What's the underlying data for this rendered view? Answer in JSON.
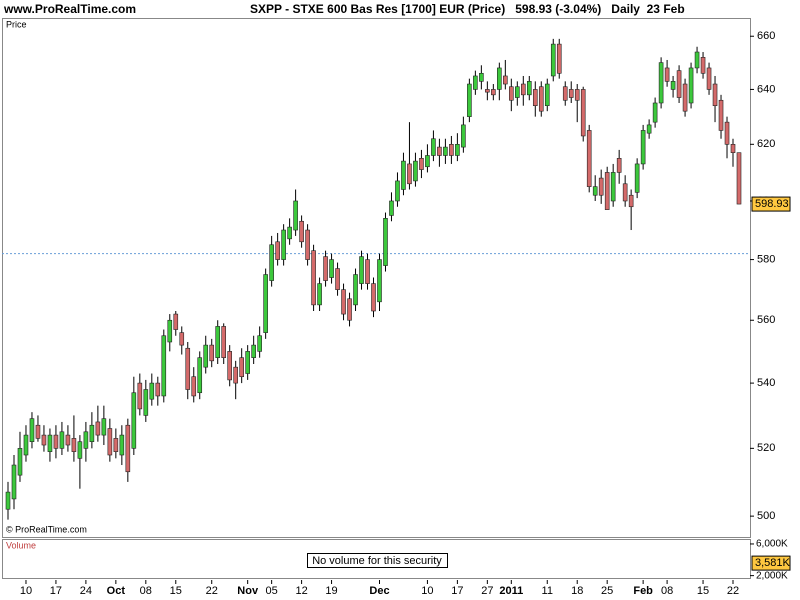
{
  "chart_data": {
    "type": "candlestick",
    "site": "www.ProRealTime.com",
    "title": "SXPP - STXE 600 Bas Res [1700] EUR (Price)   598.93 (-3.04%)   Daily  23 Feb",
    "price_label": "Price",
    "copyright": "© ProRealTime.com",
    "log_scale": true,
    "up_color": "#3cc83c",
    "down_color": "#d46a6a",
    "ylim": [
      494,
      667
    ],
    "yticks": [
      500,
      520,
      540,
      560,
      580,
      600,
      620,
      640,
      660
    ],
    "reference_line": 582,
    "last_price": 598.93,
    "categories": [
      null,
      null,
      null,
      "10",
      null,
      null,
      null,
      null,
      "17",
      null,
      null,
      null,
      null,
      "24",
      null,
      null,
      null,
      null,
      "Oct",
      null,
      null,
      null,
      null,
      "08",
      null,
      null,
      null,
      null,
      "15",
      null,
      null,
      null,
      null,
      null,
      "22",
      null,
      null,
      null,
      null,
      null,
      "Nov",
      null,
      null,
      null,
      "05",
      null,
      null,
      null,
      null,
      "12",
      null,
      null,
      null,
      null,
      "19",
      null,
      null,
      null,
      null,
      null,
      null,
      null,
      "Dec",
      null,
      null,
      null,
      null,
      null,
      null,
      null,
      "10",
      null,
      null,
      null,
      null,
      "17",
      null,
      null,
      null,
      null,
      "27",
      null,
      null,
      null,
      "2011",
      null,
      null,
      null,
      null,
      null,
      "11",
      null,
      null,
      null,
      null,
      "18",
      null,
      null,
      null,
      null,
      "25",
      null,
      null,
      null,
      null,
      null,
      "Feb",
      null,
      null,
      null,
      "08",
      null,
      null,
      null,
      null,
      null,
      "15",
      null,
      null,
      null,
      null,
      "22",
      null
    ],
    "ohlc": [
      [
        502,
        510,
        499,
        507
      ],
      [
        505,
        518,
        502,
        515
      ],
      [
        512,
        525,
        510,
        520
      ],
      [
        518,
        527,
        516,
        524
      ],
      [
        522,
        531,
        520,
        529
      ],
      [
        527,
        530,
        522,
        523
      ],
      [
        524,
        527,
        519,
        521
      ],
      [
        519,
        526,
        516,
        524
      ],
      [
        524,
        527,
        517,
        520
      ],
      [
        520,
        528,
        518,
        525
      ],
      [
        524,
        527,
        519,
        521
      ],
      [
        523,
        530,
        516,
        519
      ],
      [
        517,
        524,
        508,
        522
      ],
      [
        520,
        528,
        516,
        525
      ],
      [
        522,
        531,
        520,
        527
      ],
      [
        528,
        533,
        522,
        524
      ],
      [
        524,
        533,
        521,
        529
      ],
      [
        526,
        529,
        516,
        518
      ],
      [
        523,
        526,
        517,
        519
      ],
      [
        518,
        527,
        515,
        524
      ],
      [
        527,
        529,
        510,
        513
      ],
      [
        520,
        542,
        518,
        537
      ],
      [
        540,
        543,
        530,
        532
      ],
      [
        530,
        541,
        528,
        538
      ],
      [
        535,
        543,
        533,
        540
      ],
      [
        540,
        542,
        533,
        536
      ],
      [
        536,
        557,
        534,
        555
      ],
      [
        553,
        562,
        550,
        560
      ],
      [
        562,
        563,
        555,
        557
      ],
      [
        556,
        558,
        549,
        552
      ],
      [
        551,
        553,
        535,
        538
      ],
      [
        542,
        545,
        534,
        536
      ],
      [
        537,
        550,
        535,
        548
      ],
      [
        545,
        555,
        543,
        552
      ],
      [
        552,
        554,
        545,
        547
      ],
      [
        548,
        560,
        546,
        558
      ],
      [
        558,
        559,
        546,
        548
      ],
      [
        550,
        552,
        539,
        541
      ],
      [
        545,
        547,
        535,
        540
      ],
      [
        548,
        551,
        540,
        542
      ],
      [
        543,
        552,
        541,
        550
      ],
      [
        548,
        555,
        546,
        552
      ],
      [
        550,
        558,
        548,
        555
      ],
      [
        556,
        577,
        554,
        575
      ],
      [
        573,
        588,
        571,
        585
      ],
      [
        586,
        589,
        578,
        580
      ],
      [
        580,
        592,
        578,
        590
      ],
      [
        587,
        594,
        585,
        591
      ],
      [
        590,
        604,
        588,
        600
      ],
      [
        593,
        595,
        584,
        586
      ],
      [
        590,
        592,
        578,
        580
      ],
      [
        583,
        585,
        563,
        565
      ],
      [
        565,
        574,
        563,
        572
      ],
      [
        581,
        583,
        571,
        573
      ],
      [
        574,
        582,
        572,
        580
      ],
      [
        577,
        579,
        568,
        570
      ],
      [
        570,
        572,
        560,
        562
      ],
      [
        567,
        569,
        558,
        560
      ],
      [
        565,
        577,
        563,
        575
      ],
      [
        572,
        583,
        570,
        581
      ],
      [
        580,
        582,
        570,
        572
      ],
      [
        572,
        574,
        561,
        563
      ],
      [
        566,
        582,
        563,
        580
      ],
      [
        578,
        596,
        576,
        594
      ],
      [
        595,
        603,
        593,
        600
      ],
      [
        600,
        610,
        598,
        607
      ],
      [
        604,
        617,
        602,
        614
      ],
      [
        613,
        628,
        604,
        606
      ],
      [
        607,
        617,
        605,
        614
      ],
      [
        615,
        618,
        608,
        611
      ],
      [
        612,
        620,
        610,
        616
      ],
      [
        616,
        625,
        614,
        622
      ],
      [
        619,
        622,
        612,
        616
      ],
      [
        616,
        622,
        613,
        619
      ],
      [
        620,
        623,
        613,
        616
      ],
      [
        616,
        624,
        614,
        620
      ],
      [
        619,
        630,
        617,
        627
      ],
      [
        630,
        644,
        628,
        642
      ],
      [
        640,
        647,
        638,
        645
      ],
      [
        643,
        649,
        640,
        646
      ],
      [
        640,
        643,
        636,
        639
      ],
      [
        640,
        642,
        636,
        638
      ],
      [
        640,
        650,
        636,
        648
      ],
      [
        645,
        651,
        640,
        642
      ],
      [
        641,
        644,
        632,
        636
      ],
      [
        637,
        643,
        634,
        641
      ],
      [
        642,
        645,
        634,
        638
      ],
      [
        638,
        645,
        636,
        643
      ],
      [
        640,
        643,
        630,
        634
      ],
      [
        641,
        643,
        630,
        632
      ],
      [
        634,
        644,
        632,
        642
      ],
      [
        645,
        659,
        643,
        657
      ],
      [
        657,
        659,
        644,
        646
      ],
      [
        641,
        643,
        634,
        636
      ],
      [
        640,
        643,
        635,
        637
      ],
      [
        640,
        642,
        628,
        636
      ],
      [
        640,
        641,
        621,
        623
      ],
      [
        625,
        627,
        603,
        605
      ],
      [
        602,
        609,
        600,
        605
      ],
      [
        608,
        611,
        599,
        602
      ],
      [
        610,
        612,
        597,
        597
      ],
      [
        600,
        613,
        598,
        610
      ],
      [
        615,
        618,
        606,
        610
      ],
      [
        606,
        609,
        598,
        600
      ],
      [
        602,
        604,
        590,
        598
      ],
      [
        603,
        615,
        601,
        613
      ],
      [
        613,
        627,
        611,
        625
      ],
      [
        624,
        629,
        622,
        627
      ],
      [
        628,
        637,
        626,
        635
      ],
      [
        635,
        652,
        633,
        650
      ],
      [
        648,
        651,
        641,
        643
      ],
      [
        640,
        645,
        637,
        643
      ],
      [
        647,
        649,
        635,
        637
      ],
      [
        642,
        644,
        630,
        632
      ],
      [
        635,
        650,
        633,
        648
      ],
      [
        648,
        656,
        646,
        654
      ],
      [
        652,
        654,
        644,
        646
      ],
      [
        648,
        650,
        638,
        640
      ],
      [
        642,
        645,
        628,
        634
      ],
      [
        636,
        638,
        622,
        625
      ],
      [
        628,
        630,
        615,
        620
      ],
      [
        620,
        622,
        612,
        617
      ],
      [
        617,
        617,
        598.93,
        598.93
      ]
    ],
    "volume": {
      "label": "Volume",
      "message": "No volume for this security",
      "ylim": [
        1700000,
        6500000
      ],
      "yticks": [
        {
          "value": 6000000,
          "label": "6,000K"
        },
        {
          "value": 2000000,
          "label": "2,000K"
        }
      ],
      "last_volume": {
        "value": 3581000,
        "label": "3,581K"
      }
    }
  }
}
